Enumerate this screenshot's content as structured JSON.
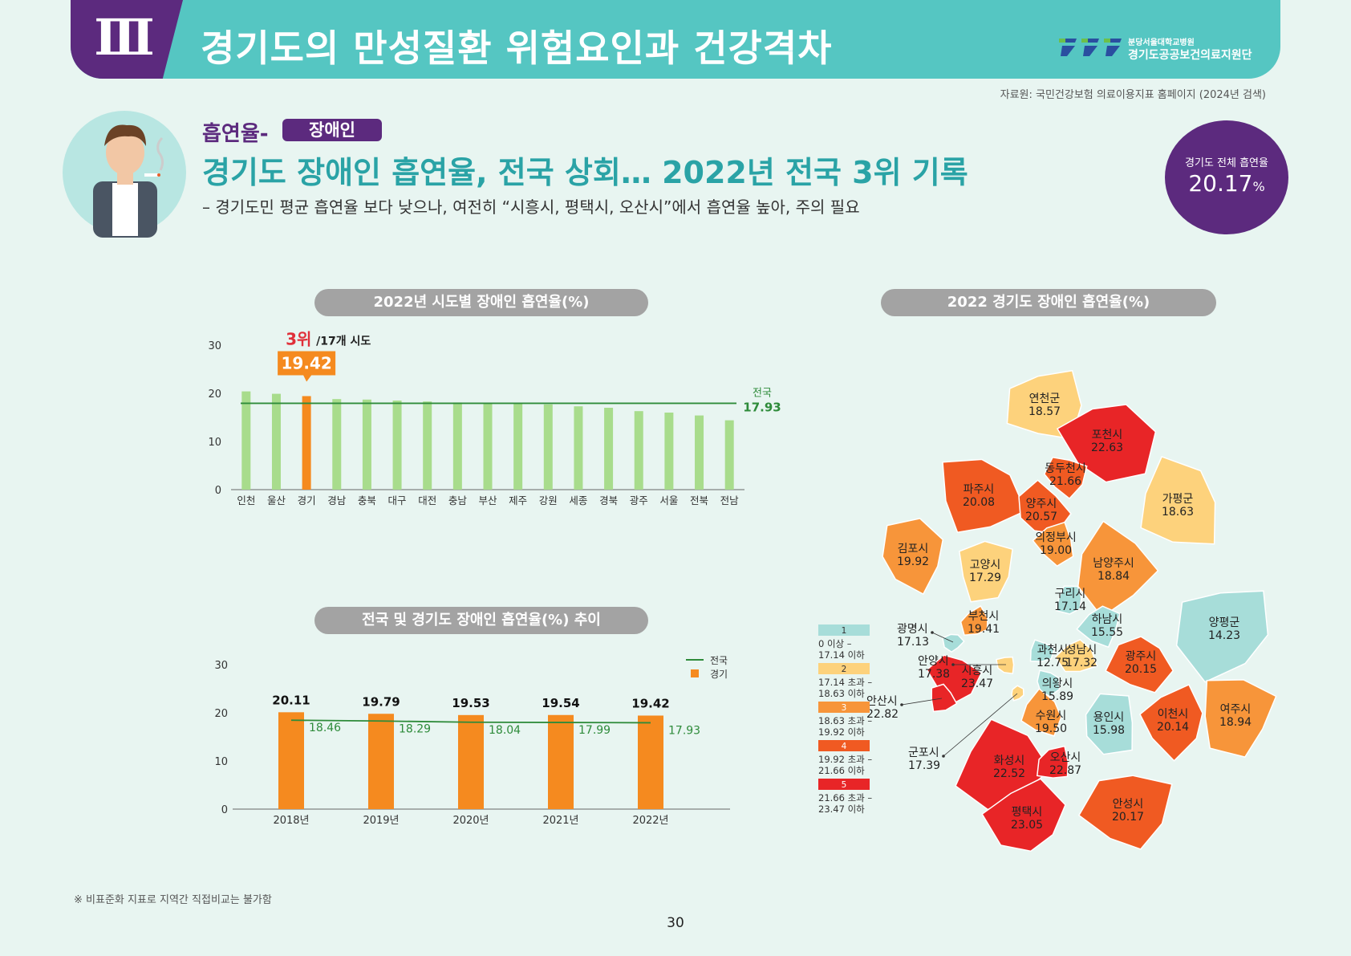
{
  "header": {
    "section_number": "Ⅲ",
    "title": "경기도의 만성질환 위험요인과 건강격차",
    "logo_line1": "분당서울대학교병원",
    "logo_line2": "경기도공공보건의료지원단"
  },
  "source": "자료원: 국민건강보험 의료이용지표 홈페이지 (2024년 검색)",
  "intro": {
    "topic": "흡연율-",
    "badge": "장애인",
    "headline": "경기도 장애인 흡연율, 전국 상회… 2022년 전국 3위 기록",
    "subline": "– 경기도민 평균 흡연율 보다 낮으나, 여전히 “시흥시, 평택시, 오산시”에서 흡연율 높아, 주의 필요"
  },
  "province_rate": {
    "label": "경기도 전체 흡연율",
    "value": "20.17",
    "unit": "%"
  },
  "colors": {
    "teal": "#55c6c2",
    "purple": "#5c2a7e",
    "orange": "#f58a1f",
    "light_green": "#a8dc8c",
    "dark_green": "#2e8b3a"
  },
  "chart_data": [
    {
      "type": "bar",
      "title": "2022년 시도별 장애인 흡연율(%)",
      "categories": [
        "인천",
        "울산",
        "경기",
        "경남",
        "충북",
        "대구",
        "대전",
        "충남",
        "부산",
        "제주",
        "강원",
        "세종",
        "경북",
        "광주",
        "서울",
        "전북",
        "전남"
      ],
      "values": [
        20.4,
        19.9,
        19.42,
        18.8,
        18.7,
        18.5,
        18.3,
        18.1,
        18.0,
        17.9,
        17.7,
        17.3,
        17.0,
        16.3,
        16.0,
        15.4,
        14.4
      ],
      "ylim": [
        0,
        30
      ],
      "yticks": [
        0,
        10,
        20,
        30
      ],
      "highlight": {
        "category": "경기",
        "value": "19.42",
        "rank_text": "3위",
        "rank_suffix": "/17개 시도"
      },
      "reference_line": {
        "name": "전국",
        "value": 17.93,
        "label": "17.93"
      }
    },
    {
      "type": "bar",
      "title": "전국 및 경기도 장애인 흡연율(%) 추이",
      "categories": [
        "2018년",
        "2019년",
        "2020년",
        "2021년",
        "2022년"
      ],
      "series": [
        {
          "name": "경기",
          "values": [
            20.11,
            19.79,
            19.53,
            19.54,
            19.42
          ]
        },
        {
          "name": "전국",
          "values": [
            18.46,
            18.29,
            18.04,
            17.99,
            17.93
          ]
        }
      ],
      "ylim": [
        0,
        30
      ],
      "yticks": [
        0,
        10,
        20,
        30
      ]
    },
    {
      "type": "map",
      "title": "2022 경기도 장애인 흡연율(%)",
      "legend": [
        {
          "class": "1",
          "range": "0 이상 –\n17.14 이하",
          "color": "#a7ddd9"
        },
        {
          "class": "2",
          "range": "17.14 초과 –\n18.63 이하",
          "color": "#fdd27c"
        },
        {
          "class": "3",
          "range": "18.63 초과 –\n19.92 이하",
          "color": "#f7953a"
        },
        {
          "class": "4",
          "range": "19.92 초과 –\n21.66 이하",
          "color": "#f05a22"
        },
        {
          "class": "5",
          "range": "21.66 초과 –\n23.47 이하",
          "color": "#e82527"
        }
      ],
      "regions": [
        {
          "name": "연천군",
          "value": "18.57"
        },
        {
          "name": "포천시",
          "value": "22.63"
        },
        {
          "name": "동두천시",
          "value": "21.66"
        },
        {
          "name": "파주시",
          "value": "20.08"
        },
        {
          "name": "양주시",
          "value": "20.57"
        },
        {
          "name": "가평군",
          "value": "18.63"
        },
        {
          "name": "의정부시",
          "value": "19.00"
        },
        {
          "name": "김포시",
          "value": "19.92"
        },
        {
          "name": "고양시",
          "value": "17.29"
        },
        {
          "name": "남양주시",
          "value": "18.84"
        },
        {
          "name": "구리시",
          "value": "17.14"
        },
        {
          "name": "부천시",
          "value": "19.41"
        },
        {
          "name": "하남시",
          "value": "15.55"
        },
        {
          "name": "양평군",
          "value": "14.23"
        },
        {
          "name": "광명시",
          "value": "17.13"
        },
        {
          "name": "과천시",
          "value": "12.75"
        },
        {
          "name": "성남시",
          "value": "17.32"
        },
        {
          "name": "광주시",
          "value": "20.15"
        },
        {
          "name": "안양시",
          "value": "17.38"
        },
        {
          "name": "시흥시",
          "value": "23.47"
        },
        {
          "name": "의왕시",
          "value": "15.89"
        },
        {
          "name": "안산시",
          "value": "22.82"
        },
        {
          "name": "수원시",
          "value": "19.50"
        },
        {
          "name": "용인시",
          "value": "15.98"
        },
        {
          "name": "이천시",
          "value": "20.14"
        },
        {
          "name": "여주시",
          "value": "18.94"
        },
        {
          "name": "군포시",
          "value": "17.39"
        },
        {
          "name": "화성시",
          "value": "22.52"
        },
        {
          "name": "오산시",
          "value": "22.87"
        },
        {
          "name": "평택시",
          "value": "23.05"
        },
        {
          "name": "안성시",
          "value": "20.17"
        }
      ]
    }
  ],
  "footnote": "※ 비표준화 지표로 지역간 직접비교는 불가함",
  "page_number": "30"
}
